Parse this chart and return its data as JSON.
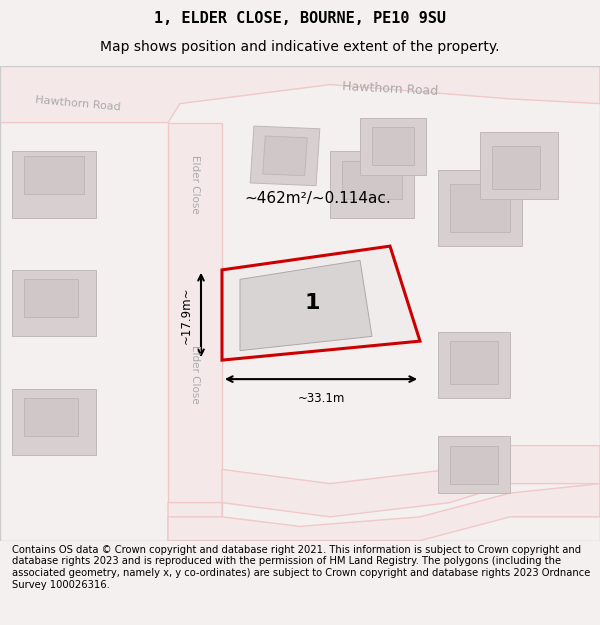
{
  "title_line1": "1, ELDER CLOSE, BOURNE, PE10 9SU",
  "title_line2": "Map shows position and indicative extent of the property.",
  "footer_text": "Contains OS data © Crown copyright and database right 2021. This information is subject to Crown copyright and database rights 2023 and is reproduced with the permission of HM Land Registry. The polygons (including the associated geometry, namely x, y co-ordinates) are subject to Crown copyright and database rights 2023 Ordnance Survey 100026316.",
  "bg_color": "#f5f0f0",
  "map_bg": "#f9f6f6",
  "road_color": "#f0c8c8",
  "road_fill": "#f5e8e8",
  "building_fill": "#d8d0d0",
  "building_edge": "#c0b8b8",
  "highlight_fill": "#f0ecec",
  "highlight_edge": "#cc0000",
  "road_label_color": "#aaaaaa",
  "measurement_color": "#111111",
  "area_text": "~462m²/~0.114ac.",
  "label_1": "1",
  "dim_width": "~33.1m",
  "dim_height": "~17.9m~",
  "road_label_hawthorn_left": "Hawthorn Road",
  "road_label_hawthorn_right": "Hawthorn Road",
  "road_label_elder_top": "Elder Close",
  "road_label_elder_bottom": "Elder Close",
  "title_fontsize": 11,
  "subtitle_fontsize": 10,
  "footer_fontsize": 7.2,
  "map_xlim": [
    0,
    100
  ],
  "map_ylim": [
    0,
    100
  ]
}
